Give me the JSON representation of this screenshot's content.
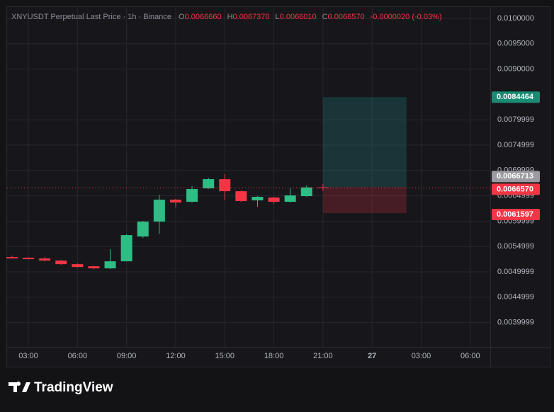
{
  "chart_data": {
    "type": "candlestick",
    "title": "XNYUSDT Perpetual Last Price · 1h · Binance",
    "legend": [
      {
        "label": "O",
        "value": "0.0066660"
      },
      {
        "label": "H",
        "value": "0.0067370"
      },
      {
        "label": "L",
        "value": "0.0066010"
      },
      {
        "label": "C",
        "value": "0.0066570"
      }
    ],
    "change": "-0.0000020 (-0.03%)",
    "up_color": "#2ebd85",
    "down_color": "#f23645",
    "x": [
      2,
      3,
      4,
      5,
      6,
      7,
      8,
      9,
      10,
      11,
      12,
      13,
      14,
      15,
      16,
      17,
      18,
      19,
      20,
      21
    ],
    "open": [
      0.005292,
      0.005278,
      0.005264,
      0.005222,
      0.005152,
      0.00511,
      0.005069,
      0.005208,
      0.005697,
      0.005991,
      0.006424,
      0.006382,
      0.006647,
      0.006829,
      0.006591,
      0.00641,
      0.006466,
      0.006382,
      0.006494,
      0.006666
    ],
    "high": [
      0.00532,
      0.005292,
      0.005292,
      0.005236,
      0.005166,
      0.005124,
      0.005446,
      0.005739,
      0.006005,
      0.006522,
      0.006438,
      0.006689,
      0.006857,
      0.006927,
      0.006605,
      0.006494,
      0.00648,
      0.006647,
      0.006703,
      0.006737
    ],
    "low": [
      0.005264,
      0.00525,
      0.005208,
      0.005138,
      0.005083,
      0.005055,
      0.005055,
      0.005208,
      0.005669,
      0.005753,
      0.00627,
      0.006368,
      0.006633,
      0.00641,
      0.006382,
      0.006284,
      0.00634,
      0.006368,
      0.00648,
      0.006601
    ],
    "close": [
      0.005264,
      0.00525,
      0.005222,
      0.005152,
      0.005096,
      0.005069,
      0.005208,
      0.005725,
      0.005991,
      0.006424,
      0.006368,
      0.006633,
      0.006829,
      0.006591,
      0.006396,
      0.00648,
      0.006382,
      0.006508,
      0.006666,
      0.006657
    ],
    "xlim": [
      1.7,
      31.22
    ],
    "xticks": [
      {
        "value": 3,
        "label": "03:00"
      },
      {
        "value": 6,
        "label": "06:00"
      },
      {
        "value": 9,
        "label": "09:00"
      },
      {
        "value": 12,
        "label": "12:00"
      },
      {
        "value": 15,
        "label": "15:00"
      },
      {
        "value": 18,
        "label": "18:00"
      },
      {
        "value": 21,
        "label": "21:00"
      },
      {
        "value": 24,
        "label": "27"
      },
      {
        "value": 27,
        "label": "03:00"
      },
      {
        "value": 30,
        "label": "06:00"
      }
    ],
    "ylim": [
      0.00352,
      0.010223
    ],
    "yticks": [
      {
        "value": 0.01,
        "label": "0.0100000"
      },
      {
        "value": 0.0095,
        "label": "0.0095000"
      },
      {
        "value": 0.009,
        "label": "0.0090000"
      },
      {
        "value": 0.0079999,
        "label": "0.0079999"
      },
      {
        "value": 0.0074999,
        "label": "0.0074999"
      },
      {
        "value": 0.0069999,
        "label": "0.0069999"
      },
      {
        "value": 0.0064999,
        "label": "0.0064999"
      },
      {
        "value": 0.0059999,
        "label": "0.0059999"
      },
      {
        "value": 0.0054999,
        "label": "0.0054999"
      },
      {
        "value": 0.0049999,
        "label": "0.0049999"
      },
      {
        "value": 0.0044999,
        "label": "0.0044999"
      },
      {
        "value": 0.0039999,
        "label": "0.0039999"
      }
    ],
    "grid": true,
    "position": {
      "x_range": [
        21,
        26.1
      ],
      "entry": 0.0066713,
      "target": 0.0084464,
      "stop": 0.0061597
    },
    "last_price": {
      "value": 0.006657,
      "label": "0.0066570"
    }
  },
  "footer": {
    "brand": "TradingView"
  }
}
